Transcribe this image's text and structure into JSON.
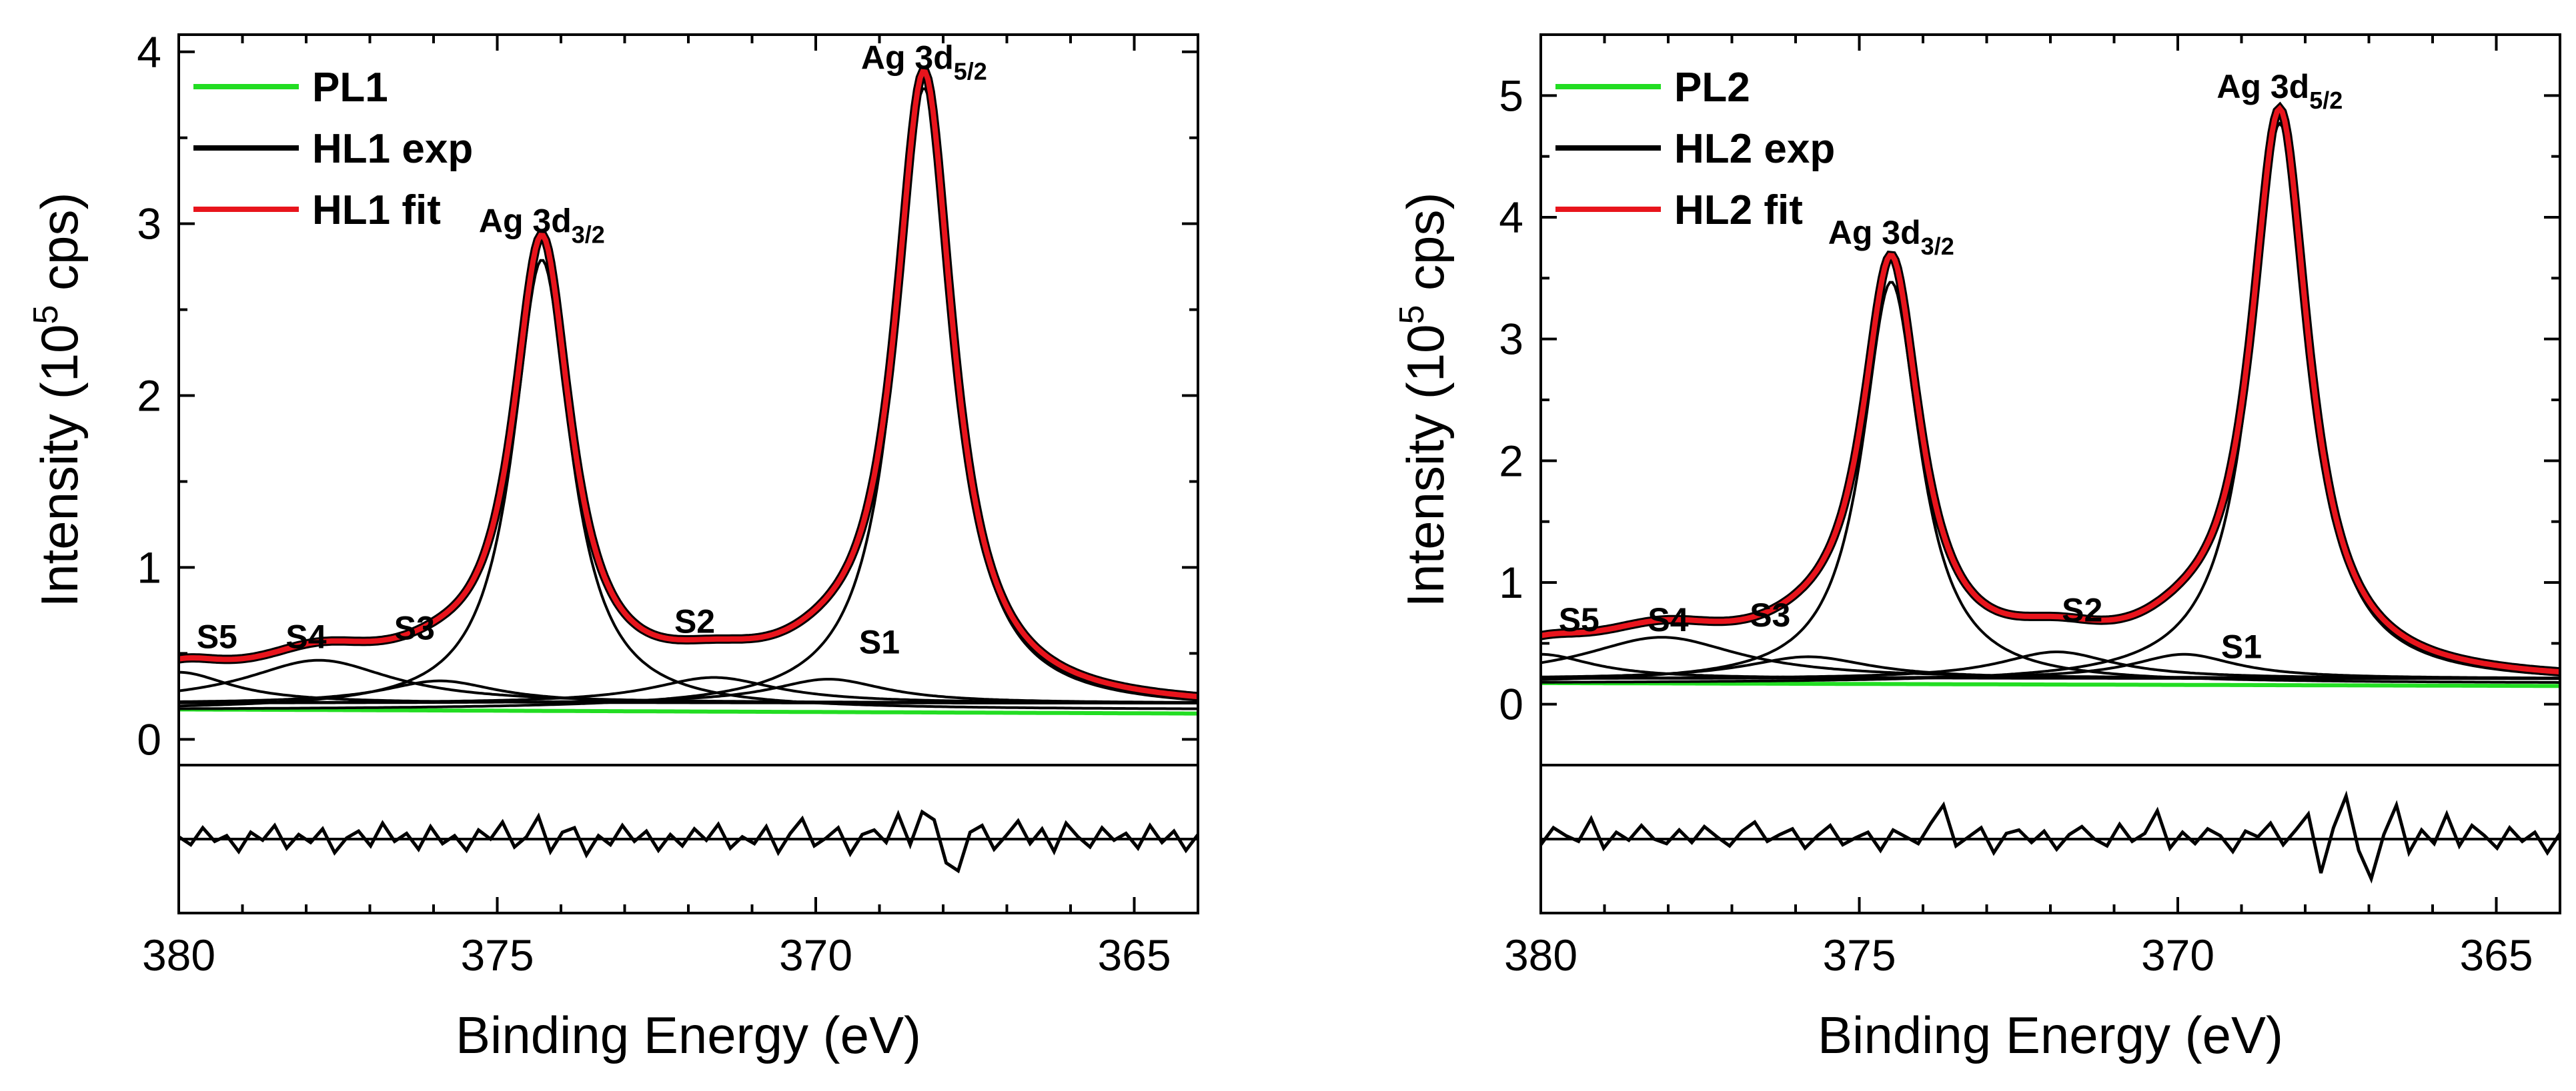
{
  "chart_data": [
    {
      "type": "line",
      "panel": "left",
      "xlabel": "Binding Energy (eV)",
      "ylabel": "Intensity (10^5 cps)",
      "ylabel_parts": {
        "pre": "Intensity (10",
        "sup": "5",
        "post": " cps)"
      },
      "xlim": [
        380,
        364
      ],
      "ylim": [
        -0.15,
        4.1
      ],
      "x_ticks": [
        380,
        375,
        370,
        365
      ],
      "y_ticks": [
        0,
        1,
        2,
        3,
        4
      ],
      "background": 0.15,
      "legend_position": "top-left",
      "legend": [
        {
          "label": "PL1",
          "color": "#22dd22"
        },
        {
          "label": "HL1 exp",
          "color": "#000000"
        },
        {
          "label": "HL1 fit",
          "color": "#e8141c"
        }
      ],
      "main_peaks": [
        {
          "center": 374.3,
          "amp": 2.62,
          "width": 0.55
        },
        {
          "center": 368.3,
          "amp": 3.62,
          "width": 0.55
        }
      ],
      "side_peaks": [
        {
          "name": "S1",
          "center": 369.8,
          "amp": 0.14,
          "width": 1.1
        },
        {
          "name": "S2",
          "center": 371.6,
          "amp": 0.15,
          "width": 1.2
        },
        {
          "name": "S3",
          "center": 375.9,
          "amp": 0.13,
          "width": 1.1
        },
        {
          "name": "S4",
          "center": 377.8,
          "amp": 0.25,
          "width": 1.4
        },
        {
          "name": "S5",
          "center": 380.0,
          "amp": 0.18,
          "width": 1.0
        }
      ],
      "annotations": [
        {
          "text": "Ag 3d",
          "sub": "3/2",
          "x": 374.3,
          "y": 2.95
        },
        {
          "text": "Ag 3d",
          "sub": "5/2",
          "x": 368.3,
          "y": 3.9
        },
        {
          "text": "S1",
          "x": 369.0,
          "y": 0.5
        },
        {
          "text": "S2",
          "x": 371.9,
          "y": 0.62
        },
        {
          "text": "S3",
          "x": 376.3,
          "y": 0.58
        },
        {
          "text": "S4",
          "x": 378.0,
          "y": 0.53
        },
        {
          "text": "S5",
          "x": 379.4,
          "y": 0.53
        }
      ],
      "residual": [
        0.02,
        -0.05,
        0.1,
        -0.02,
        0.03,
        -0.11,
        0.06,
        -0.01,
        0.12,
        -0.08,
        0.04,
        -0.03,
        0.09,
        -0.12,
        0.01,
        0.07,
        -0.06,
        0.14,
        -0.02,
        0.05,
        -0.09,
        0.11,
        -0.04,
        0.03,
        -0.1,
        0.08,
        0.0,
        0.15,
        -0.07,
        0.02,
        0.2,
        -0.11,
        0.06,
        0.1,
        -0.14,
        0.03,
        -0.05,
        0.12,
        -0.02,
        0.07,
        -0.1,
        0.04,
        -0.06,
        0.09,
        -0.01,
        0.13,
        -0.08,
        0.02,
        -0.04,
        0.11,
        -0.12,
        0.05,
        0.18,
        -0.06,
        0.01,
        0.1,
        -0.13,
        0.04,
        0.08,
        -0.03,
        0.22,
        -0.05,
        0.24,
        0.17,
        -0.21,
        -0.28,
        0.06,
        0.12,
        -0.09,
        0.03,
        0.16,
        -0.04,
        0.09,
        -0.11,
        0.14,
        0.02,
        -0.07,
        0.1,
        -0.01,
        0.05,
        -0.08,
        0.12,
        -0.03,
        0.07,
        -0.1,
        0.04
      ]
    },
    {
      "type": "line",
      "panel": "right",
      "xlabel": "Binding Energy (eV)",
      "ylabel": "Intensity (10^5 cps)",
      "ylabel_parts": {
        "pre": "Intensity (10",
        "sup": "5",
        "post": " cps)"
      },
      "xlim": [
        380,
        364
      ],
      "ylim": [
        -0.5,
        5.5
      ],
      "x_ticks": [
        380,
        375,
        370,
        365
      ],
      "y_ticks": [
        0,
        1,
        2,
        3,
        4,
        5
      ],
      "background": 0.15,
      "legend_position": "top-left",
      "legend": [
        {
          "label": "PL2",
          "color": "#22dd22"
        },
        {
          "label": "HL2 exp",
          "color": "#000000"
        },
        {
          "label": "HL2 fit",
          "color": "#e8141c"
        }
      ],
      "main_peaks": [
        {
          "center": 374.5,
          "amp": 3.3,
          "width": 0.55
        },
        {
          "center": 368.4,
          "amp": 4.6,
          "width": 0.55
        }
      ],
      "side_peaks": [
        {
          "name": "S1",
          "center": 369.9,
          "amp": 0.2,
          "width": 1.0
        },
        {
          "name": "S2",
          "center": 371.9,
          "amp": 0.22,
          "width": 1.1
        },
        {
          "name": "S3",
          "center": 375.8,
          "amp": 0.18,
          "width": 1.2
        },
        {
          "name": "S4",
          "center": 378.1,
          "amp": 0.34,
          "width": 1.5
        },
        {
          "name": "S5",
          "center": 380.0,
          "amp": 0.2,
          "width": 1.0
        }
      ],
      "annotations": [
        {
          "text": "Ag 3d",
          "sub": "3/2",
          "x": 374.5,
          "y": 3.78
        },
        {
          "text": "Ag 3d",
          "sub": "5/2",
          "x": 368.4,
          "y": 4.98
        },
        {
          "text": "S1",
          "x": 369.0,
          "y": 0.38
        },
        {
          "text": "S2",
          "x": 371.5,
          "y": 0.68
        },
        {
          "text": "S3",
          "x": 376.4,
          "y": 0.64
        },
        {
          "text": "S4",
          "x": 378.0,
          "y": 0.6
        },
        {
          "text": "S5",
          "x": 379.4,
          "y": 0.6
        }
      ],
      "residual": [
        -0.05,
        0.1,
        0.03,
        -0.02,
        0.18,
        -0.08,
        0.06,
        -0.01,
        0.12,
        0.0,
        -0.04,
        0.08,
        -0.03,
        0.11,
        0.02,
        -0.06,
        0.07,
        0.15,
        -0.02,
        0.04,
        0.09,
        -0.08,
        0.03,
        0.12,
        -0.05,
        0.01,
        0.06,
        -0.1,
        0.08,
        0.02,
        -0.04,
        0.14,
        0.3,
        -0.06,
        0.02,
        0.1,
        -0.12,
        0.05,
        0.08,
        -0.03,
        0.07,
        -0.09,
        0.04,
        0.11,
        0.0,
        -0.06,
        0.13,
        -0.02,
        0.05,
        0.25,
        -0.08,
        0.06,
        -0.04,
        0.09,
        0.03,
        -0.11,
        0.07,
        0.02,
        0.14,
        -0.05,
        0.08,
        0.22,
        -0.3,
        0.1,
        0.38,
        -0.1,
        -0.35,
        0.04,
        0.3,
        -0.12,
        0.08,
        -0.04,
        0.22,
        -0.06,
        0.12,
        0.03,
        -0.08,
        0.1,
        -0.02,
        0.06,
        -0.12,
        0.05
      ]
    }
  ]
}
